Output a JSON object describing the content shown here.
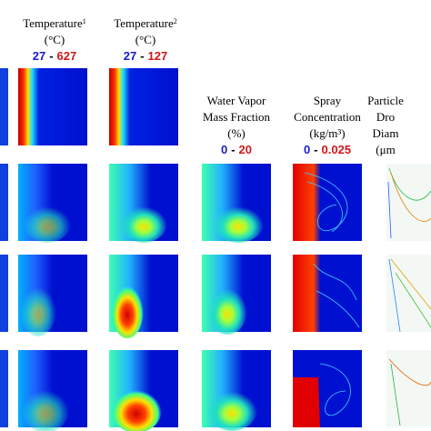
{
  "columns": [
    {
      "title": [
        "Temperature"
      ],
      "sup": "1",
      "unit": "(°C)",
      "range": [
        "27",
        "-",
        "627"
      ]
    },
    {
      "title": [
        "Temperature"
      ],
      "sup": "2",
      "unit": "(°C)",
      "range": [
        "27",
        "-",
        "127"
      ]
    },
    {
      "title": [
        "Water Vapor",
        "Mass Fraction"
      ],
      "unit": "(%)",
      "range": [
        "0",
        "-",
        "20"
      ]
    },
    {
      "title": [
        "Spray",
        "Concentration"
      ],
      "unit": "(kg/m³)",
      "range": [
        "0",
        "-",
        "0.025"
      ]
    },
    {
      "title": [
        "Particle",
        "Dro",
        "Diam"
      ],
      "unit": "(μm"
    }
  ]
}
